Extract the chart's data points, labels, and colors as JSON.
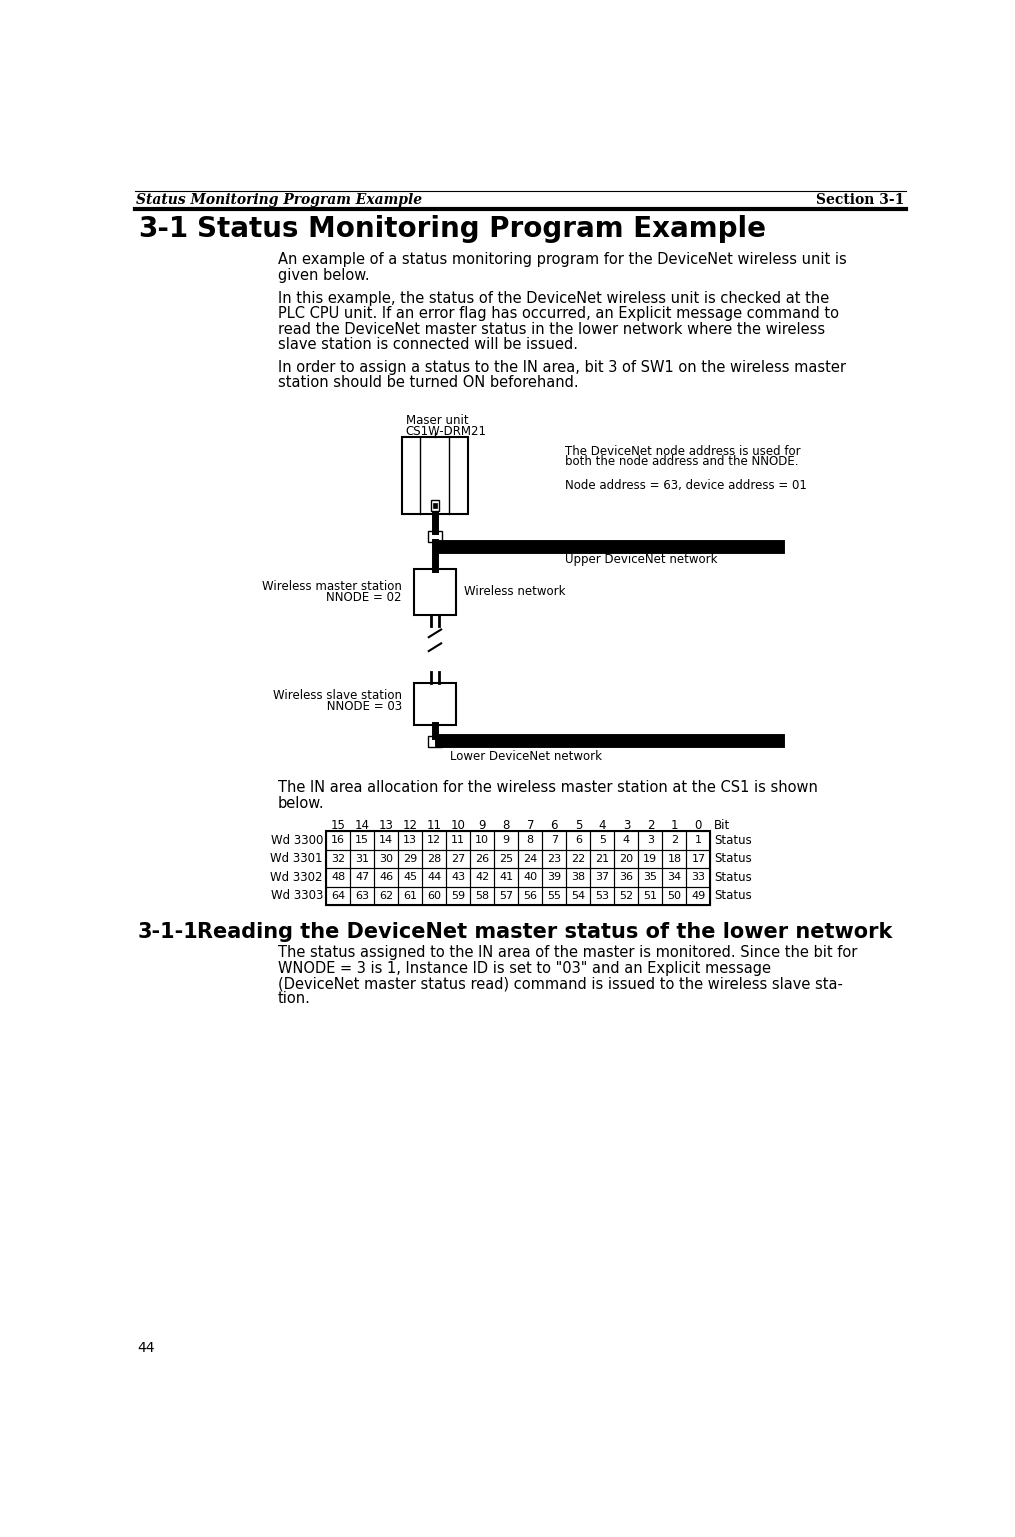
{
  "page_title_left": "Status Monitoring Program Example",
  "page_title_right": "Section 3-1",
  "para1_line1": "An example of a status monitoring program for the DeviceNet wireless unit is",
  "para1_line2": "given below.",
  "para2_line1": "In this example, the status of the DeviceNet wireless unit is checked at the",
  "para2_line2": "PLC CPU unit. If an error flag has occurred, an Explicit message command to",
  "para2_line3": "read the DeviceNet master status in the lower network where the wireless",
  "para2_line4": "slave station is connected will be issued.",
  "para3_line1": "In order to assign a status to the IN area, bit 3 of SW1 on the wireless master",
  "para3_line2": "station should be turned ON beforehand.",
  "diagram_master_label1": "Maser unit",
  "diagram_master_label2": "CS1W-DRM21",
  "diagram_note1_line1": "The DeviceNet node address is used for",
  "diagram_note1_line2": "both the node address and the NNODE.",
  "diagram_note2": "Node address = 63, device address = 01",
  "diagram_upper": "Upper DeviceNet network",
  "diagram_wireless": "Wireless network",
  "diagram_wireless_master1": "Wireless master station",
  "diagram_wireless_master2": "NNODE = 02",
  "diagram_wireless_slave1": "Wireless slave station",
  "diagram_wireless_slave2": " NNODE = 03",
  "diagram_lower": "Lower DeviceNet network",
  "para4_line1": "The IN area allocation for the wireless master station at the CS1 is shown",
  "para4_line2": "below.",
  "table_header": [
    "15",
    "14",
    "13",
    "12",
    "11",
    "10",
    "9",
    "8",
    "7",
    "6",
    "5",
    "4",
    "3",
    "2",
    "1",
    "0",
    "Bit"
  ],
  "table_rows": [
    {
      "label": "Wd 3300",
      "values": [
        "16",
        "15",
        "14",
        "13",
        "12",
        "11",
        "10",
        "9",
        "8",
        "7",
        "6",
        "5",
        "4",
        "3",
        "2",
        "1"
      ],
      "status": "Status"
    },
    {
      "label": "Wd 3301",
      "values": [
        "32",
        "31",
        "30",
        "29",
        "28",
        "27",
        "26",
        "25",
        "24",
        "23",
        "22",
        "21",
        "20",
        "19",
        "18",
        "17"
      ],
      "status": "Status"
    },
    {
      "label": "Wd 3302",
      "values": [
        "48",
        "47",
        "46",
        "45",
        "44",
        "43",
        "42",
        "41",
        "40",
        "39",
        "38",
        "37",
        "36",
        "35",
        "34",
        "33"
      ],
      "status": "Status"
    },
    {
      "label": "Wd 3303",
      "values": [
        "64",
        "63",
        "62",
        "61",
        "60",
        "59",
        "58",
        "57",
        "56",
        "55",
        "54",
        "53",
        "52",
        "51",
        "50",
        "49"
      ],
      "status": "Status"
    }
  ],
  "sub_heading1": "3-1-1",
  "sub_heading2": "Reading the DeviceNet master status of the lower network",
  "sub_para1": "The status assigned to the IN area of the master is monitored. Since the bit for",
  "sub_para2": "WNODE = 3 is 1, Instance ID is set to \"03\" and an Explicit message",
  "sub_para3": "(DeviceNet master status read) command is issued to the wireless slave sta-",
  "sub_para4": "tion.",
  "page_num": "44",
  "bg_color": "#ffffff"
}
